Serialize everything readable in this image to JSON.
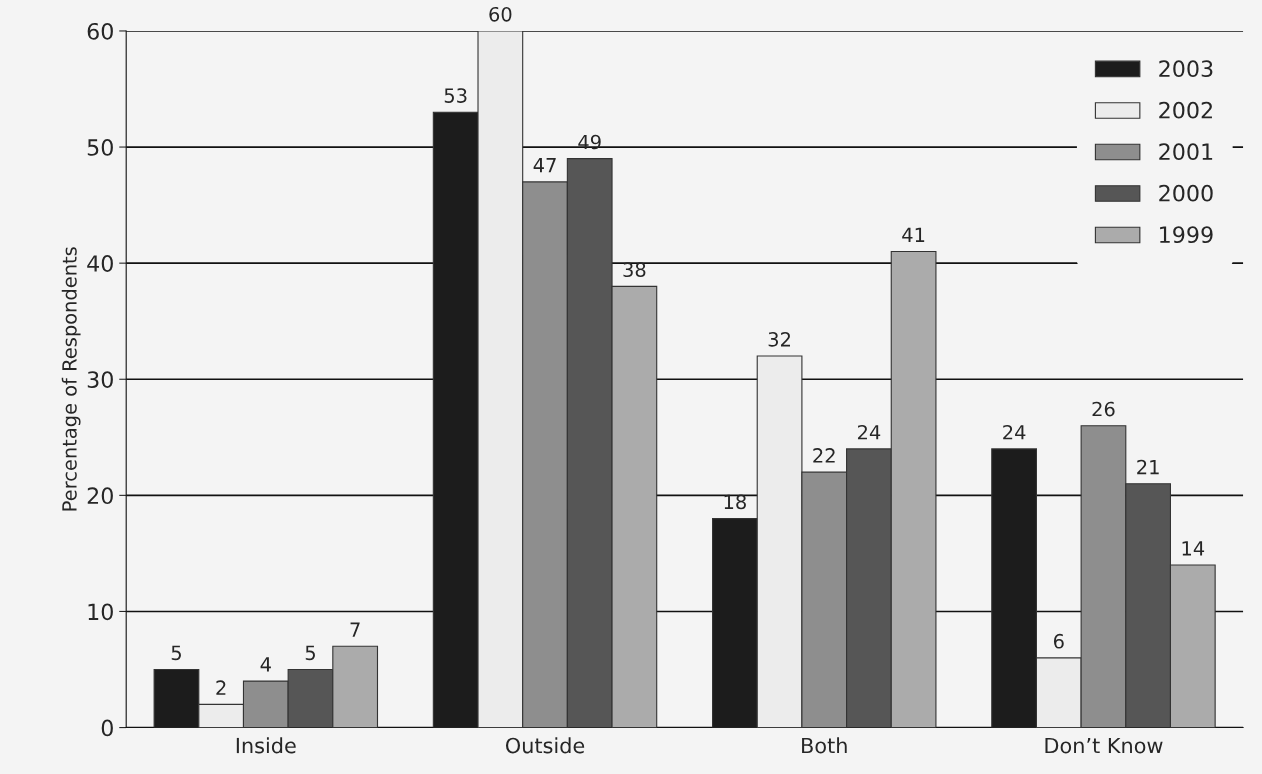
{
  "chart_data": {
    "type": "bar",
    "ylabel": "Percentage of Respondents",
    "categories": [
      "Inside",
      "Outside",
      "Both",
      "Don’t Know"
    ],
    "series": [
      {
        "name": "2003",
        "color": "#1c1c1c",
        "values": [
          5,
          53,
          18,
          24
        ]
      },
      {
        "name": "2002",
        "color": "#ececec",
        "values": [
          2,
          60,
          32,
          6
        ]
      },
      {
        "name": "2001",
        "color": "#8e8e8e",
        "values": [
          4,
          47,
          22,
          26
        ]
      },
      {
        "name": "2000",
        "color": "#565656",
        "values": [
          5,
          49,
          24,
          21
        ]
      },
      {
        "name": "1999",
        "color": "#ababab",
        "values": [
          7,
          38,
          41,
          14
        ]
      }
    ],
    "ylim": [
      0,
      60
    ],
    "yticks": [
      0,
      10,
      20,
      30,
      40,
      50,
      60
    ],
    "grid": "y",
    "legend": "top right",
    "data_labels": true
  }
}
